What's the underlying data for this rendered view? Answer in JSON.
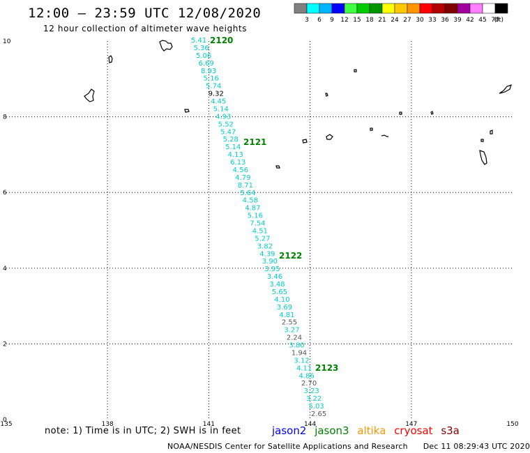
{
  "header": {
    "title": "12:00 – 23:59 UTC 12/08/2020",
    "subtitle": "12 hour collection of altimeter wave heights"
  },
  "colorbar": {
    "unit": "(ft)",
    "colors": [
      "#808080",
      "#00ffff",
      "#00b4ff",
      "#0000ff",
      "#40ff40",
      "#00cc00",
      "#009600",
      "#ffff00",
      "#ffc800",
      "#ff9600",
      "#ff0000",
      "#b40000",
      "#800000",
      "#a000a0",
      "#ff80ff",
      "#ffffff",
      "#000000"
    ],
    "labels": [
      "3",
      "6",
      "9",
      "12",
      "15",
      "18",
      "21",
      "24",
      "27",
      "30",
      "33",
      "36",
      "39",
      "42",
      "45",
      "70"
    ]
  },
  "axes": {
    "lon_ticks": [
      "135",
      "138",
      "141",
      "144",
      "147",
      "150"
    ],
    "lat_ticks": [
      "0",
      "2",
      "4",
      "6",
      "8",
      "10"
    ],
    "lon_range": [
      135,
      150
    ],
    "lat_range": [
      0,
      10
    ]
  },
  "track_labels": [
    "2120",
    "2121",
    "2122",
    "2123"
  ],
  "track_label_color": "#008000",
  "swh_points": [
    {
      "v": "5.41",
      "c": "#00cccc"
    },
    {
      "v": "5.36",
      "c": "#00cccc"
    },
    {
      "v": "5.06",
      "c": "#00cccc"
    },
    {
      "v": "6.69",
      "c": "#00cccc"
    },
    {
      "v": "8.93",
      "c": "#00cccc"
    },
    {
      "v": "5.16",
      "c": "#00cccc"
    },
    {
      "v": "5.74",
      "c": "#00cccc"
    },
    {
      "v": "9.32",
      "c": "#000000"
    },
    {
      "v": "4.45",
      "c": "#00cccc"
    },
    {
      "v": "5.14",
      "c": "#00cccc"
    },
    {
      "v": "4.93",
      "c": "#00cccc"
    },
    {
      "v": "5.52",
      "c": "#00cccc"
    },
    {
      "v": "5.47",
      "c": "#00cccc"
    },
    {
      "v": "5.28",
      "c": "#00cccc"
    },
    {
      "v": "5.14",
      "c": "#00cccc"
    },
    {
      "v": "4.13",
      "c": "#00cccc"
    },
    {
      "v": "6.13",
      "c": "#00cccc"
    },
    {
      "v": "4.56",
      "c": "#00cccc"
    },
    {
      "v": "4.79",
      "c": "#00cccc"
    },
    {
      "v": "8.71",
      "c": "#00cccc"
    },
    {
      "v": "5.64",
      "c": "#00cccc"
    },
    {
      "v": "4.58",
      "c": "#00cccc"
    },
    {
      "v": "4.87",
      "c": "#00cccc"
    },
    {
      "v": "5.16",
      "c": "#00cccc"
    },
    {
      "v": "7.54",
      "c": "#00cccc"
    },
    {
      "v": "4.51",
      "c": "#00cccc"
    },
    {
      "v": "5.27",
      "c": "#00cccc"
    },
    {
      "v": "3.82",
      "c": "#00cccc"
    },
    {
      "v": "4.39",
      "c": "#00cccc"
    },
    {
      "v": "3.90",
      "c": "#00cccc"
    },
    {
      "v": "3.95",
      "c": "#00cccc"
    },
    {
      "v": "3.46",
      "c": "#00cccc"
    },
    {
      "v": "3.48",
      "c": "#00cccc"
    },
    {
      "v": "5.65",
      "c": "#00cccc"
    },
    {
      "v": "4.10",
      "c": "#00cccc"
    },
    {
      "v": "3.69",
      "c": "#00cccc"
    },
    {
      "v": "4.81",
      "c": "#00cccc"
    },
    {
      "v": "2.55",
      "c": "#555555"
    },
    {
      "v": "3.27",
      "c": "#00cccc"
    },
    {
      "v": "2.24",
      "c": "#555555"
    },
    {
      "v": "3.80",
      "c": "#00cccc"
    },
    {
      "v": "1.94",
      "c": "#555555"
    },
    {
      "v": "3.12",
      "c": "#00cccc"
    },
    {
      "v": "4.11",
      "c": "#00cccc"
    },
    {
      "v": "4.86",
      "c": "#00cccc"
    },
    {
      "v": "2.70",
      "c": "#555555"
    },
    {
      "v": "3.23",
      "c": "#00cccc"
    },
    {
      "v": "3.22",
      "c": "#00cccc"
    },
    {
      "v": "5.03",
      "c": "#00cccc"
    },
    {
      "v": "2.65",
      "c": "#555555"
    }
  ],
  "footer": {
    "note": "note:  1) Time is in UTC;  2) SWH is in feet",
    "satellites": [
      {
        "name": "jason2",
        "color": "#0000ff"
      },
      {
        "name": "jason3",
        "color": "#008000"
      },
      {
        "name": "altika",
        "color": "#ff9600"
      },
      {
        "name": "cryosat",
        "color": "#ff0000"
      },
      {
        "name": "s3a",
        "color": "#800000"
      }
    ],
    "credit": "NOAA/NESDIS Center for Satellite Applications and Research",
    "timestamp": "Dec 11 08:29:43 UTC 2020"
  }
}
